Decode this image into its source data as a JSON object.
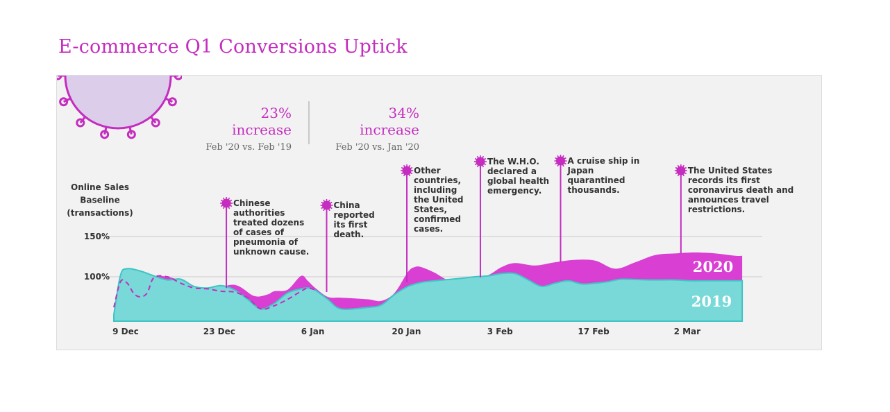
{
  "page": {
    "title": "E-commerce Q1 Conversions Uptick"
  },
  "stats": [
    {
      "value": "23% increase",
      "caption": "Feb '20 vs. Feb '19"
    },
    {
      "value": "34% increase",
      "caption": "Feb '20 vs. Jan '20"
    }
  ],
  "colors": {
    "accent": "#c42dbf",
    "series_2020": "#d93fd2",
    "series_2019": "#78d9d8",
    "series_2019_line": "#3fc4c4",
    "virus_fill": "#dccdea",
    "panel_bg": "#f2f2f2"
  },
  "icons": {
    "corner": "virus-icon",
    "marker": "virus-marker-icon"
  },
  "chart_data": {
    "type": "area",
    "ylabel_lines": [
      "Online Sales",
      "Baseline",
      "(transactions)"
    ],
    "yticks": [
      {
        "value": 150,
        "label": "150%"
      },
      {
        "value": 100,
        "label": "100%"
      }
    ],
    "ylim": [
      40,
      150
    ],
    "xlim": [
      0,
      97
    ],
    "xticks": [
      {
        "day": 0,
        "label": "9 Dec"
      },
      {
        "day": 14,
        "label": "23 Dec"
      },
      {
        "day": 28,
        "label": "6 Jan"
      },
      {
        "day": 42,
        "label": "20 Jan"
      },
      {
        "day": 56,
        "label": "3 Feb"
      },
      {
        "day": 70,
        "label": "17 Feb"
      },
      {
        "day": 84,
        "label": "2 Mar"
      }
    ],
    "grid": "horizontal",
    "series": [
      {
        "name": "2020",
        "x": [
          0,
          1,
          2,
          4,
          6,
          8,
          10,
          12,
          14,
          18,
          21,
          23,
          24,
          26,
          28,
          29,
          30,
          32,
          34,
          38,
          40,
          42,
          44,
          45,
          46,
          48,
          50,
          52,
          54,
          56,
          58,
          60,
          63,
          66,
          69,
          72,
          75,
          78,
          81,
          84,
          86,
          88,
          90,
          93,
          94
        ],
        "values": [
          52,
          96,
          92,
          99,
          101,
          100,
          95,
          87,
          82,
          90,
          76,
          78,
          82,
          84,
          101,
          95,
          87,
          75,
          74,
          72,
          70,
          80,
          106,
          112,
          112,
          105,
          96,
          98,
          99,
          102,
          112,
          117,
          114,
          118,
          121,
          120,
          110,
          118,
          127,
          129,
          130,
          130,
          129,
          126,
          126
        ]
      },
      {
        "name": "2019",
        "x": [
          0,
          1,
          2,
          4,
          6,
          8,
          10,
          12,
          14,
          16,
          18,
          20,
          22,
          24,
          26,
          28,
          29,
          30,
          32,
          34,
          38,
          40,
          42,
          44,
          46,
          48,
          52,
          54,
          56,
          58,
          60,
          62,
          64,
          66,
          68,
          70,
          72,
          74,
          76,
          80,
          84,
          86,
          88,
          90,
          92,
          94
        ],
        "values": [
          53,
          102,
          110,
          107,
          101,
          96,
          97,
          88,
          86,
          89,
          84,
          72,
          60,
          67,
          80,
          85,
          86,
          84,
          72,
          60,
          62,
          65,
          78,
          88,
          93,
          95,
          98,
          100,
          101,
          104,
          104,
          96,
          88,
          92,
          95,
          91,
          92,
          94,
          97,
          96,
          96,
          95,
          95,
          95,
          95,
          95
        ]
      },
      {
        "name": "2019 baseline (dashed)",
        "x": [
          0,
          1,
          2,
          3,
          4,
          5,
          6,
          8,
          10,
          12,
          14,
          16,
          18,
          20,
          22,
          24,
          26,
          28,
          29,
          30
        ],
        "values": [
          62,
          94,
          92,
          79,
          75,
          80,
          99,
          100,
          92,
          86,
          85,
          82,
          81,
          74,
          60,
          64,
          72,
          82,
          86,
          84
        ]
      }
    ],
    "series_labels": [
      "2020",
      "2019"
    ],
    "annotations": [
      {
        "day": 16,
        "lines": [
          "Chinese",
          "authorities",
          "treated dozens",
          "of cases of",
          "pneumonia of",
          "unknown cause."
        ]
      },
      {
        "day": 31,
        "lines": [
          "China",
          "reported",
          "its first",
          "death."
        ]
      },
      {
        "day": 43,
        "lines": [
          "Other",
          "countries,",
          "including",
          "the United",
          "States,",
          "confirmed",
          "cases."
        ]
      },
      {
        "day": 54,
        "lines": [
          "The W.H.O.",
          "declared a",
          "global health",
          "emergency."
        ]
      },
      {
        "day": 66,
        "lines": [
          "A cruise ship in",
          "Japan",
          "quarantined",
          "thousands."
        ]
      },
      {
        "day": 84,
        "lines": [
          "The United States",
          "records its first",
          "coronavirus death and",
          "announces travel",
          "restrictions."
        ]
      }
    ]
  }
}
